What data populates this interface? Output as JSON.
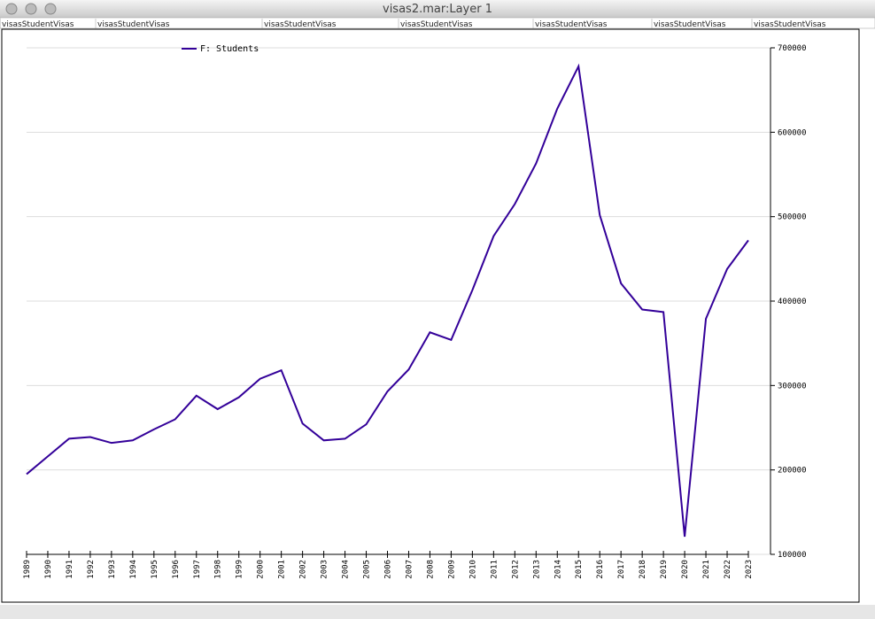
{
  "window": {
    "title": "visas2.mar:Layer 1",
    "tabs": [
      "visasStudentVisas",
      "visasStudentVisas",
      "visasStudentVisas",
      "visasStudentVisas",
      "visasStudentVisas",
      "visasStudentVisas",
      "visasStudentVisas"
    ]
  },
  "chart_data": {
    "type": "line",
    "x": [
      1989,
      1990,
      1991,
      1992,
      1993,
      1994,
      1995,
      1996,
      1997,
      1998,
      1999,
      2000,
      2001,
      2002,
      2003,
      2004,
      2005,
      2006,
      2007,
      2008,
      2009,
      2010,
      2011,
      2012,
      2013,
      2014,
      2015,
      2016,
      2017,
      2018,
      2019,
      2020,
      2021,
      2022,
      2023
    ],
    "xlim": [
      1989,
      2023
    ],
    "xticks": [
      1989,
      1990,
      1991,
      1992,
      1993,
      1994,
      1995,
      1996,
      1997,
      1998,
      1999,
      2000,
      2001,
      2002,
      2003,
      2004,
      2005,
      2006,
      2007,
      2008,
      2009,
      2010,
      2011,
      2012,
      2013,
      2014,
      2015,
      2016,
      2017,
      2018,
      2019,
      2020,
      2021,
      2022,
      2023
    ],
    "series": [
      {
        "name": "F: Students",
        "color": "#330099",
        "values": [
          195000,
          216000,
          237000,
          239000,
          232000,
          235000,
          248000,
          260000,
          288000,
          272000,
          286000,
          308000,
          318000,
          255000,
          235000,
          237000,
          254000,
          293000,
          319000,
          363000,
          354000,
          413000,
          477000,
          515000,
          563000,
          628000,
          678000,
          502000,
          421000,
          390000,
          387000,
          121000,
          379000,
          438000,
          472000
        ]
      }
    ],
    "ylim": [
      100000,
      700000
    ],
    "yticks": [
      100000,
      200000,
      300000,
      400000,
      500000,
      600000,
      700000
    ],
    "grid": true,
    "legend": "top-left"
  }
}
